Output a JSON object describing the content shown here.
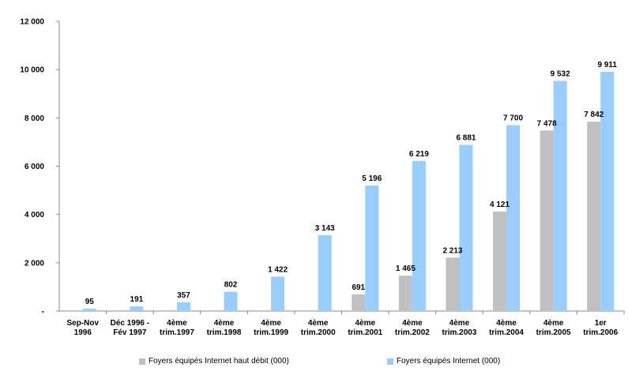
{
  "chart_data": {
    "type": "bar",
    "y_ticks": [
      "-",
      "2 000",
      "4 000",
      "6 000",
      "8 000",
      "10 000",
      "12 000"
    ],
    "ylim": [
      0,
      12000
    ],
    "grid": false,
    "legend_position": "bottom",
    "categories": [
      [
        "Sep-Nov",
        "1996"
      ],
      [
        "Déc 1996 -",
        "Fév 1997"
      ],
      [
        "4ème",
        "trim.1997"
      ],
      [
        "4ème",
        "trim.1998"
      ],
      [
        "4ème",
        "trim.1999"
      ],
      [
        "4ème",
        "trim.2000"
      ],
      [
        "4ème",
        "trim.2001"
      ],
      [
        "4ème",
        "trim.2002"
      ],
      [
        "4ème",
        "trim.2003"
      ],
      [
        "4ème",
        "trim.2004"
      ],
      [
        "4ème",
        "trim.2005"
      ],
      [
        "1er",
        "trim.2006"
      ]
    ],
    "series": [
      {
        "name": "Foyers équipés Internet haut débit (000)",
        "color": "#c0c0c0",
        "values": [
          null,
          null,
          null,
          null,
          null,
          null,
          691,
          1465,
          2213,
          4121,
          7478,
          7842
        ],
        "labels": [
          "",
          "",
          "",
          "",
          "",
          "",
          "691",
          "1 465",
          "2 213",
          "4 121",
          "7 478",
          "7 842"
        ]
      },
      {
        "name": "Foyers équipés  Internet (000)",
        "color": "#99ccff",
        "values": [
          95,
          191,
          357,
          802,
          1422,
          3143,
          5196,
          6219,
          6881,
          7700,
          9532,
          9911
        ],
        "labels": [
          "95",
          "191",
          "357",
          "802",
          "1 422",
          "3 143",
          "5 196",
          "6 219",
          "6 881",
          "7 700",
          "9 532",
          "9 911"
        ]
      }
    ]
  },
  "legend": {
    "items": [
      {
        "label": "Foyers équipés Internet haut débit (000)",
        "color": "#c0c0c0"
      },
      {
        "label": "Foyers équipés  Internet (000)",
        "color": "#99ccff"
      }
    ]
  }
}
